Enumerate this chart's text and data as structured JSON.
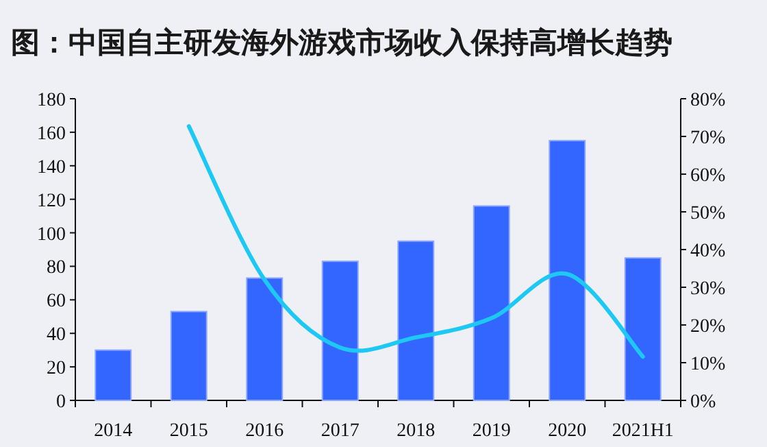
{
  "chart_data": {
    "type": "bar",
    "title": "图：中国自主研发海外游戏市场收入保持高增长趋势",
    "categories": [
      "2014",
      "2015",
      "2016",
      "2017",
      "2018",
      "2019",
      "2020",
      "2021H1"
    ],
    "series": [
      {
        "color": "#3366ff",
        "values": [
          30,
          53,
          73,
          83,
          95,
          116,
          155,
          85
        ]
      },
      {
        "type": "line",
        "axis": "y2",
        "color": "#1ec8f5",
        "values": [
          null,
          72.7,
          32,
          14,
          16.7,
          21.8,
          33.5,
          11.6
        ]
      }
    ],
    "ylim": [
      0,
      180
    ],
    "yticks": [
      0,
      20,
      40,
      60,
      80,
      100,
      120,
      140,
      160,
      180
    ],
    "y2lim": [
      0,
      80
    ],
    "y2ticks": [
      {
        "value": 0,
        "label": "0%"
      },
      {
        "value": 10,
        "label": "10%"
      },
      {
        "value": 20,
        "label": "20%"
      },
      {
        "value": 30,
        "label": "30%"
      },
      {
        "value": 40,
        "label": "40%"
      },
      {
        "value": 50,
        "label": "50%"
      },
      {
        "value": 60,
        "label": "60%"
      },
      {
        "value": 70,
        "label": "70%"
      },
      {
        "value": 80,
        "label": "80%"
      }
    ],
    "grid": false
  }
}
